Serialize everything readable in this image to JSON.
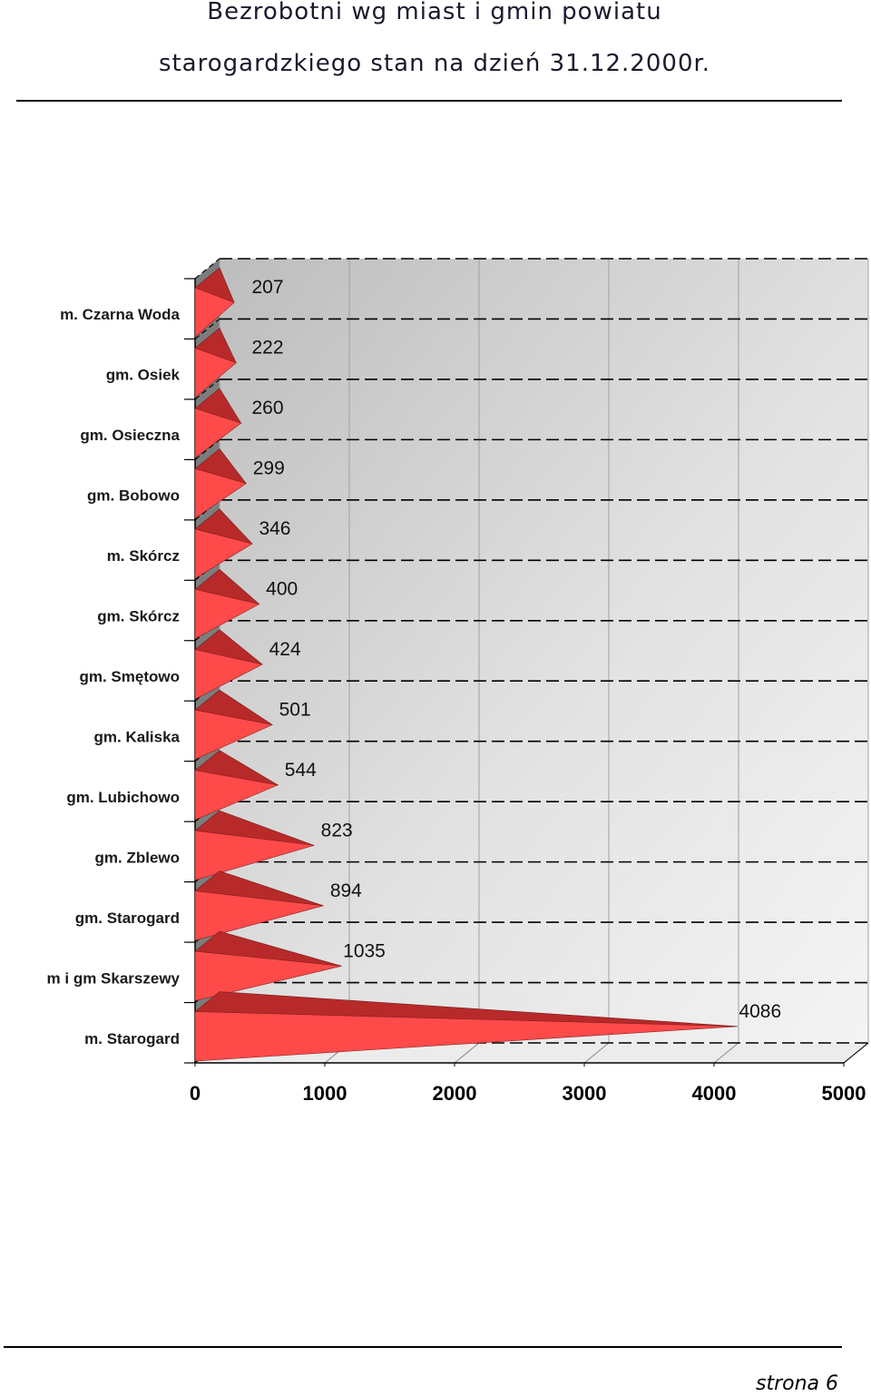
{
  "page": {
    "title_line1": "Bezrobotni wg miast i gmin powiatu",
    "title_line2": "starogardzkiego stan na dzień 31.12.2000r.",
    "footer": "strona  6"
  },
  "chart_data": {
    "type": "bar",
    "orientation": "horizontal",
    "style": "3d-pyramid",
    "categories": [
      "m. Czarna Woda",
      "gm. Osiek",
      "gm. Osieczna",
      "gm. Bobowo",
      "m. Skórcz",
      "gm. Skórcz",
      "gm. Smętowo",
      "gm. Kaliska",
      "gm. Lubichowo",
      "gm. Zblewo",
      "gm. Starogard",
      "m i gm Skarszewy",
      "m. Starogard"
    ],
    "values": [
      207,
      222,
      260,
      299,
      346,
      400,
      424,
      501,
      544,
      823,
      894,
      1035,
      4086
    ],
    "data_labels": [
      "207",
      "222",
      "260",
      "299",
      "346",
      "400",
      "424",
      "501",
      "544",
      "823",
      "894",
      "1035",
      "4086"
    ],
    "xlim": [
      0,
      5000
    ],
    "x_ticks": [
      "0",
      "1000",
      "2000",
      "3000",
      "4000",
      "5000"
    ],
    "grid": true,
    "bar_color": "#ff4a4a",
    "bar_dark_color": "#b82a2a",
    "title": "",
    "xlabel": "",
    "ylabel": ""
  }
}
